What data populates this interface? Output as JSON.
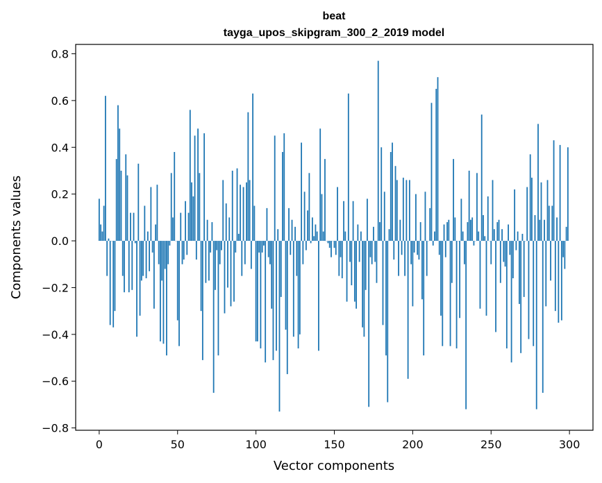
{
  "chart_data": {
    "type": "bar",
    "title": "beat",
    "subtitle": "tayga_upos_skipgram_300_2_2019 model",
    "xlabel": "Vector components",
    "ylabel": "Components values",
    "xlim": [
      -15,
      315
    ],
    "ylim": [
      -0.81,
      0.84
    ],
    "x_ticks": [
      0,
      50,
      100,
      150,
      200,
      250,
      300
    ],
    "x_tick_labels": [
      "0",
      "50",
      "100",
      "150",
      "200",
      "250",
      "300"
    ],
    "y_ticks": [
      -0.8,
      -0.6,
      -0.4,
      -0.2,
      0.0,
      0.2,
      0.4,
      0.6,
      0.8
    ],
    "y_tick_labels": [
      "−0.8",
      "−0.6",
      "−0.4",
      "−0.2",
      "0.0",
      "0.2",
      "0.4",
      "0.6",
      "0.8"
    ],
    "bar_color": "#1f77b4",
    "grid": false,
    "x": "0..299 (component index)",
    "values": [
      0.18,
      0.07,
      0.04,
      0.15,
      0.62,
      -0.15,
      0.01,
      -0.36,
      0.0,
      -0.37,
      -0.3,
      0.35,
      0.58,
      0.48,
      0.3,
      -0.15,
      -0.22,
      0.37,
      0.28,
      -0.22,
      0.12,
      -0.21,
      0.12,
      -0.01,
      -0.41,
      0.33,
      -0.32,
      -0.17,
      -0.15,
      0.15,
      -0.16,
      0.04,
      -0.13,
      0.23,
      -0.05,
      -0.29,
      0.07,
      0.24,
      -0.1,
      -0.43,
      -0.17,
      -0.44,
      -0.12,
      -0.49,
      -0.1,
      -0.02,
      0.29,
      0.1,
      0.38,
      0.0,
      -0.34,
      -0.45,
      0.12,
      -0.1,
      -0.08,
      0.17,
      -0.06,
      0.12,
      0.56,
      0.25,
      0.19,
      0.45,
      -0.08,
      0.48,
      0.29,
      -0.3,
      -0.51,
      0.46,
      -0.18,
      0.09,
      -0.17,
      -0.05,
      0.08,
      -0.65,
      -0.21,
      -0.04,
      -0.49,
      -0.1,
      -0.04,
      0.26,
      -0.31,
      0.16,
      -0.2,
      0.1,
      -0.28,
      0.3,
      -0.26,
      -0.05,
      0.31,
      0.03,
      0.24,
      -0.15,
      0.23,
      -0.1,
      0.25,
      0.55,
      0.26,
      -0.12,
      0.63,
      0.15,
      -0.43,
      -0.43,
      -0.05,
      -0.46,
      -0.05,
      -0.02,
      -0.52,
      0.14,
      -0.07,
      -0.1,
      -0.29,
      -0.51,
      0.45,
      -0.47,
      0.05,
      -0.73,
      -0.24,
      0.38,
      0.46,
      -0.38,
      -0.57,
      0.14,
      -0.06,
      0.09,
      -0.41,
      0.06,
      -0.15,
      -0.46,
      -0.4,
      0.42,
      -0.1,
      0.21,
      -0.04,
      0.13,
      0.29,
      -0.01,
      0.1,
      0.02,
      0.07,
      0.04,
      -0.47,
      0.48,
      0.2,
      0.04,
      0.35,
      0.0,
      -0.01,
      -0.03,
      -0.07,
      0.0,
      -0.03,
      -0.06,
      0.23,
      -0.15,
      -0.07,
      -0.16,
      0.17,
      0.04,
      -0.26,
      0.63,
      -0.09,
      -0.19,
      0.17,
      -0.26,
      -0.29,
      0.07,
      -0.09,
      0.04,
      -0.37,
      -0.41,
      -0.21,
      0.18,
      -0.71,
      -0.07,
      -0.1,
      0.06,
      -0.09,
      -0.18,
      0.77,
      0.08,
      0.4,
      -0.36,
      0.21,
      -0.49,
      -0.69,
      0.05,
      0.38,
      0.42,
      -0.08,
      0.32,
      0.26,
      -0.15,
      0.09,
      -0.06,
      0.27,
      -0.15,
      0.26,
      -0.59,
      0.26,
      -0.1
    ],
    "values_continued_200_299": [
      -0.28,
      -0.05,
      0.2,
      -0.06,
      -0.08,
      0.08,
      -0.25,
      -0.49,
      0.21,
      -0.15,
      0.0,
      0.14,
      0.59,
      -0.02,
      0.04,
      0.65,
      0.7,
      -0.06,
      -0.32,
      -0.45,
      0.07,
      -0.07,
      0.08,
      0.09,
      -0.45,
      -0.18,
      0.35,
      0.1,
      -0.46,
      0.0,
      -0.33,
      0.18,
      0.04,
      -0.1,
      -0.72,
      0.08,
      0.3,
      0.09,
      0.1,
      -0.02,
      0.0,
      0.29,
      0.04,
      -0.29,
      0.54,
      0.11,
      0.02,
      -0.32,
      0.19,
      0.0,
      -0.1,
      0.26,
      0.05,
      -0.39,
      0.08,
      0.09,
      -0.18,
      0.05,
      -0.09,
      -0.11,
      -0.46,
      0.07,
      -0.06,
      -0.52,
      -0.16,
      0.22,
      -0.04,
      0.04,
      -0.27,
      -0.48,
      0.03,
      -0.24,
      0.0,
      0.23,
      -0.42,
      0.37,
      0.27,
      -0.45,
      0.11,
      -0.72,
      0.5,
      0.09,
      0.25,
      -0.65,
      0.09,
      -0.28,
      0.26,
      0.15,
      -0.17,
      0.15,
      0.43,
      -0.3,
      0.1,
      -0.35,
      0.41,
      -0.34,
      -0.07,
      -0.12,
      0.06,
      0.4
    ]
  }
}
